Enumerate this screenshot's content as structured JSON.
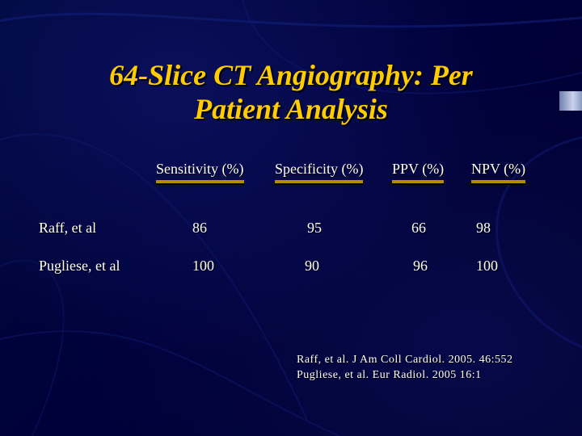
{
  "slide": {
    "title_line1": "64-Slice CT Angiography:  Per",
    "title_line2": "Patient  Analysis",
    "columns": [
      "Sensitivity (%)",
      "Specificity (%)",
      "PPV (%)",
      "NPV (%)"
    ],
    "rows": [
      {
        "label": "Raff, et al",
        "values": [
          "86",
          "95",
          "66",
          "98"
        ]
      },
      {
        "label": "Pugliese, et al",
        "values": [
          "100",
          "90",
          "96",
          "100"
        ]
      }
    ],
    "references": [
      "Raff, et al.  J Am Coll Cardiol.  2005.  46:552",
      "Pugliese, et al. Eur Radiol.  2005  16:1"
    ]
  },
  "colors": {
    "background": "#000033",
    "title": "#ffcc00",
    "text": "#ffffff",
    "underline": "#b38f00"
  }
}
